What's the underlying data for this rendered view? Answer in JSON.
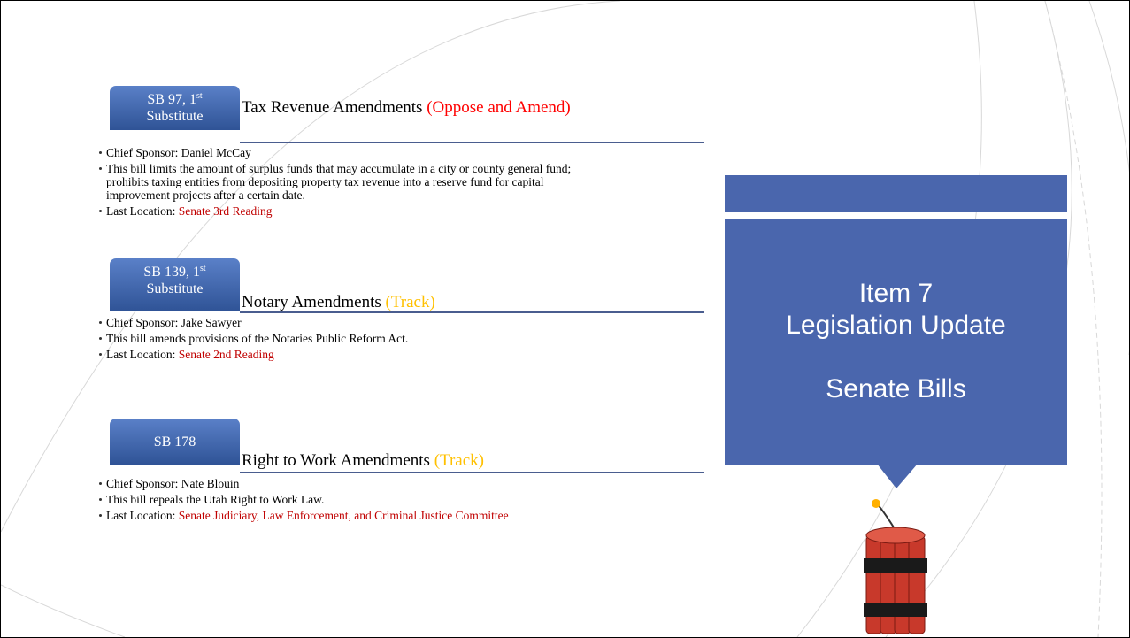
{
  "bills": [
    {
      "tab": {
        "number": "SB 97, 1",
        "sup": "st",
        "line2": "Substitute"
      },
      "title": "Tax Revenue Amendments",
      "status": "(Oppose and Amend)",
      "status_color": "#ff0000",
      "sponsor_label": "Chief Sponsor:",
      "sponsor": "Daniel McCay",
      "description": "This bill limits the amount of surplus funds that may accumulate in a city or county general fund; prohibits taxing entities from depositing property tax revenue into a reserve fund for capital improvement projects after a certain date.",
      "location_label": "Last Location:",
      "location": "Senate 3rd Reading"
    },
    {
      "tab": {
        "number": "SB 139, 1",
        "sup": "st",
        "line2": "Substitute"
      },
      "title": "Notary Amendments",
      "status": "(Track)",
      "status_color": "#ffc000",
      "sponsor_label": "Chief Sponsor:",
      "sponsor": "Jake Sawyer",
      "description": "This bill amends provisions of the Notaries Public Reform Act.",
      "location_label": "Last Location:",
      "location": "Senate 2nd Reading"
    },
    {
      "tab": {
        "number": "SB 178"
      },
      "title": "Right to Work Amendments",
      "status": "(Track)",
      "status_color": "#ffc000",
      "sponsor_label": "Chief Sponsor:",
      "sponsor": "Nate Blouin",
      "description": "This bill repeals the Utah Right to Work Law.",
      "location_label": "Last Location:",
      "location": "Senate Judiciary, Law Enforcement, and Criminal Justice Committee"
    }
  ],
  "location_color": "#c00000",
  "callout": {
    "line1": "Item 7",
    "line2": "Legislation Update",
    "line3": "Senate Bills"
  }
}
